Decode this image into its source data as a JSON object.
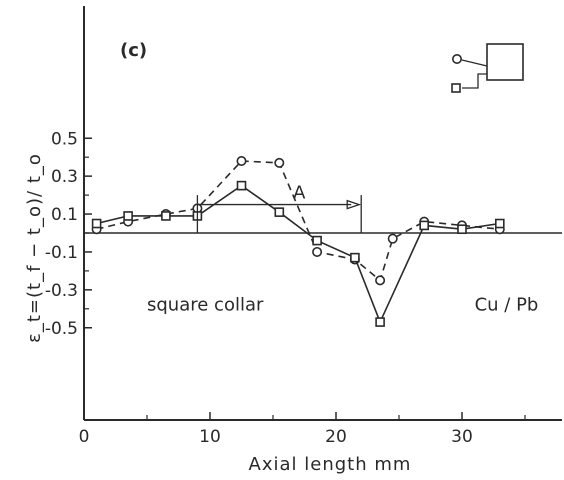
{
  "chart_data": {
    "type": "line",
    "panel_label": "(c)",
    "xlabel": "Axial length  mm",
    "ylabel": "ε_t=(t_f − t_o)/ t_o",
    "xlim": [
      0,
      38
    ],
    "ylim": [
      -0.5,
      0.6
    ],
    "x_ticks": [
      0,
      10,
      20,
      30
    ],
    "y_ticks": [
      0.5,
      0.3,
      0.1,
      -0.1,
      -0.3,
      -0.5
    ],
    "y_tick_labels": [
      "0.5",
      "0.3",
      "0.1",
      "-0.1",
      "-0.3",
      "-0.5"
    ],
    "zero_line": true,
    "grid": false,
    "series": [
      {
        "marker": "circle",
        "line_style": "dashed",
        "x": [
          1,
          3.5,
          6.5,
          9,
          12.5,
          15.5,
          18.5,
          21.5,
          23.5,
          24.5,
          27,
          30,
          33
        ],
        "y": [
          0.02,
          0.06,
          0.1,
          0.13,
          0.38,
          0.37,
          -0.1,
          -0.14,
          -0.25,
          -0.03,
          0.06,
          0.04,
          0.02
        ]
      },
      {
        "marker": "square",
        "line_style": "solid",
        "x": [
          1,
          3.5,
          6.5,
          9,
          12.5,
          15.5,
          18.5,
          21.5,
          23.5,
          27,
          30,
          33
        ],
        "y": [
          0.05,
          0.09,
          0.09,
          0.09,
          0.25,
          0.11,
          -0.04,
          -0.13,
          -0.47,
          0.04,
          0.02,
          0.05
        ]
      }
    ],
    "annotations": [
      {
        "text": "A",
        "kind": "range-arrow",
        "x_from": 9,
        "x_to": 22,
        "y": 0.15,
        "bracket_top": 0.2,
        "bracket_bottom": 0.0
      },
      {
        "text": "square collar",
        "kind": "label",
        "x": 5,
        "y": -0.41
      },
      {
        "text": "Cu / Pb",
        "kind": "label",
        "x": 31,
        "y": -0.41
      }
    ],
    "legend": {
      "placement": "top-right",
      "shape": "square-collar-schematic"
    }
  }
}
